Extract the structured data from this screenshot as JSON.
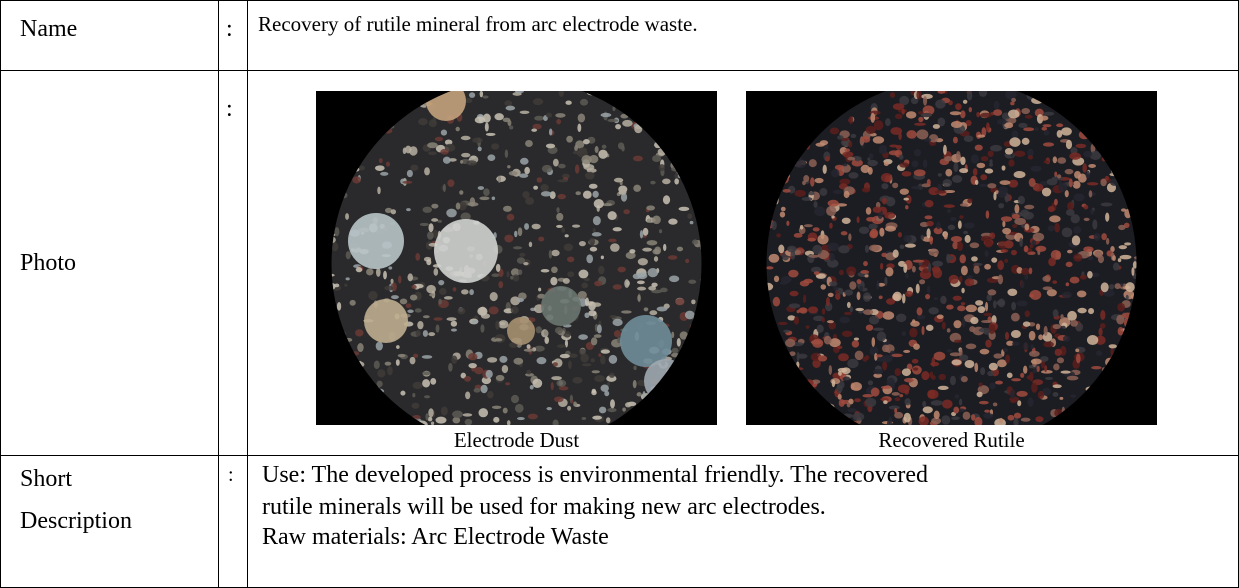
{
  "table": {
    "rows": [
      {
        "label": "Name",
        "colon": ":",
        "content": "Recovery of rutile mineral from arc electrode waste."
      },
      {
        "label": "Photo",
        "colon": ":",
        "captions": [
          "Electrode Dust",
          "Recovered Rutile"
        ]
      },
      {
        "label": [
          "Short",
          "Description"
        ],
        "colon": ":",
        "lines": [
          "Use: The developed process is environmental friendly. The recovered",
          "rutile minerals will be used for making new arc electrodes.",
          "Raw materials: Arc Electrode Waste"
        ]
      }
    ]
  }
}
